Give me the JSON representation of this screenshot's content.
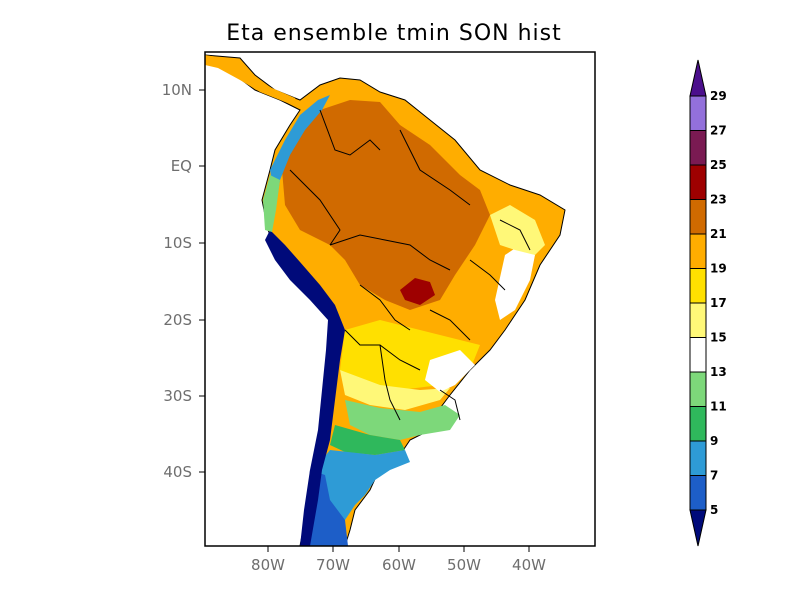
{
  "map": {
    "title": "Eta ensemble tmin SON hist",
    "lat_ticks": [
      "10N",
      "EQ",
      "10S",
      "20S",
      "30S",
      "40S"
    ],
    "lon_ticks": [
      "80W",
      "70W",
      "60W",
      "50W",
      "40W"
    ],
    "colors": {
      "c5": "#000a7a",
      "c7": "#1d5ec8",
      "c9": "#2e9bd6",
      "c11": "#2fb85c",
      "c13": "#7dd87a",
      "c15": "#ffffff",
      "c17": "#fff878",
      "c19": "#ffe000",
      "c21": "#ffad00",
      "c23": "#d06a00",
      "c25": "#9e0000",
      "c27": "#7a1a52",
      "c29": "#9370db",
      "c31": "#4b0f8c"
    }
  },
  "colorbar": {
    "labels": [
      "29",
      "27",
      "25",
      "23",
      "21",
      "19",
      "17",
      "15",
      "13",
      "11",
      "9",
      "7",
      "5"
    ],
    "colors": [
      "#4b0f8c",
      "#9370db",
      "#7a1a52",
      "#9e0000",
      "#d06a00",
      "#ffad00",
      "#ffe000",
      "#fff878",
      "#ffffff",
      "#7dd87a",
      "#2fb85c",
      "#2e9bd6",
      "#1d5ec8",
      "#000a7a"
    ]
  }
}
